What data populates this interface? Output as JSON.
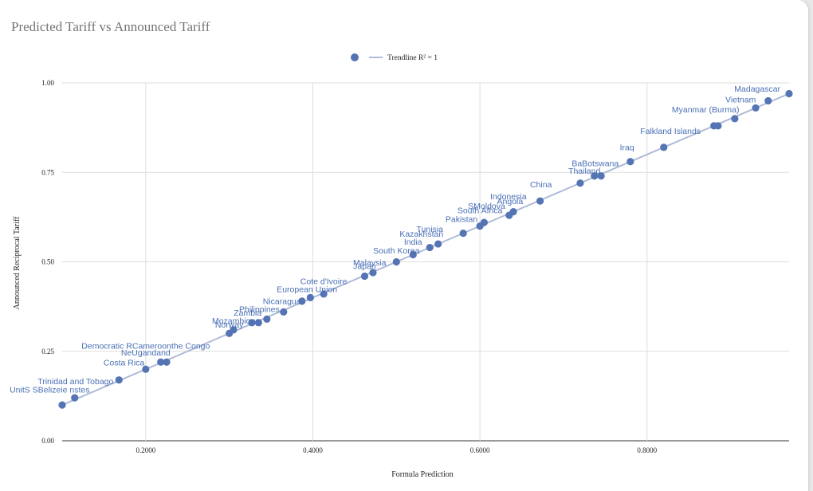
{
  "colors": {
    "point": "#5574b3",
    "trendline": "#aebbd9",
    "label": "#4a6fb5",
    "grid": "#dddddd"
  },
  "chart_data": {
    "type": "scatter",
    "title": "Predicted Tariff vs Announced Tariff",
    "xlabel": "Formula Prediction",
    "ylabel": "Announced Reciprocal Tariff",
    "xlim": [
      0.1,
      0.97
    ],
    "ylim": [
      0,
      1
    ],
    "x_ticks": [
      {
        "v": 0.2,
        "label": "0.2000"
      },
      {
        "v": 0.4,
        "label": "0.4000"
      },
      {
        "v": 0.6,
        "label": "0.6000"
      },
      {
        "v": 0.8,
        "label": "0.8000"
      }
    ],
    "y_ticks": [
      {
        "v": 0,
        "label": "0.00"
      },
      {
        "v": 0.25,
        "label": "0.25"
      },
      {
        "v": 0.5,
        "label": "0.50"
      },
      {
        "v": 0.75,
        "label": "0.75"
      },
      {
        "v": 1,
        "label": "1.00"
      }
    ],
    "grid": true,
    "legend": {
      "position": "top-center",
      "trendline_label": "Trendline R² = 1"
    },
    "trendline": {
      "x": [
        0.1,
        0.97
      ],
      "y": [
        0.1,
        0.97
      ]
    },
    "points": [
      {
        "x": 0.1,
        "y": 0.1
      },
      {
        "x": 0.115,
        "y": 0.12
      },
      {
        "x": 0.168,
        "y": 0.17
      },
      {
        "x": 0.2,
        "y": 0.2
      },
      {
        "x": 0.218,
        "y": 0.22
      },
      {
        "x": 0.225,
        "y": 0.22
      },
      {
        "x": 0.3,
        "y": 0.3
      },
      {
        "x": 0.305,
        "y": 0.31
      },
      {
        "x": 0.327,
        "y": 0.33
      },
      {
        "x": 0.335,
        "y": 0.33
      },
      {
        "x": 0.345,
        "y": 0.34
      },
      {
        "x": 0.365,
        "y": 0.36
      },
      {
        "x": 0.387,
        "y": 0.39
      },
      {
        "x": 0.397,
        "y": 0.4
      },
      {
        "x": 0.413,
        "y": 0.41
      },
      {
        "x": 0.462,
        "y": 0.46
      },
      {
        "x": 0.472,
        "y": 0.47
      },
      {
        "x": 0.5,
        "y": 0.5
      },
      {
        "x": 0.52,
        "y": 0.52
      },
      {
        "x": 0.54,
        "y": 0.54
      },
      {
        "x": 0.55,
        "y": 0.55
      },
      {
        "x": 0.58,
        "y": 0.58
      },
      {
        "x": 0.6,
        "y": 0.6
      },
      {
        "x": 0.605,
        "y": 0.61
      },
      {
        "x": 0.635,
        "y": 0.63
      },
      {
        "x": 0.64,
        "y": 0.64
      },
      {
        "x": 0.672,
        "y": 0.67
      },
      {
        "x": 0.72,
        "y": 0.72
      },
      {
        "x": 0.737,
        "y": 0.74
      },
      {
        "x": 0.745,
        "y": 0.74
      },
      {
        "x": 0.78,
        "y": 0.78
      },
      {
        "x": 0.82,
        "y": 0.82
      },
      {
        "x": 0.88,
        "y": 0.88
      },
      {
        "x": 0.885,
        "y": 0.88
      },
      {
        "x": 0.905,
        "y": 0.9
      },
      {
        "x": 0.93,
        "y": 0.93
      },
      {
        "x": 0.945,
        "y": 0.95
      },
      {
        "x": 0.97,
        "y": 0.97
      }
    ],
    "annotations": [
      {
        "text": "Madagascar",
        "x": 0.932,
        "y": 0.975
      },
      {
        "text": "Vietnam",
        "x": 0.912,
        "y": 0.945
      },
      {
        "text": "Myanmar (Burma)",
        "x": 0.87,
        "y": 0.918
      },
      {
        "text": "Falkland Islands",
        "x": 0.828,
        "y": 0.858
      },
      {
        "text": "Iraq",
        "x": 0.776,
        "y": 0.812
      },
      {
        "text": "BaBotswana",
        "x": 0.738,
        "y": 0.767
      },
      {
        "text": "Thailand",
        "x": 0.725,
        "y": 0.746
      },
      {
        "text": "China",
        "x": 0.673,
        "y": 0.708
      },
      {
        "text": "Indonesia",
        "x": 0.634,
        "y": 0.675
      },
      {
        "text": "Angola",
        "x": 0.636,
        "y": 0.662
      },
      {
        "text": "SMoldova",
        "x": 0.608,
        "y": 0.648
      },
      {
        "text": "South Africa",
        "x": 0.6,
        "y": 0.636
      },
      {
        "text": "Pakistan",
        "x": 0.578,
        "y": 0.611
      },
      {
        "text": "Tunisia",
        "x": 0.54,
        "y": 0.583
      },
      {
        "text": "Kazakhstan",
        "x": 0.53,
        "y": 0.57
      },
      {
        "text": "India",
        "x": 0.52,
        "y": 0.548
      },
      {
        "text": "South Korea",
        "x": 0.5,
        "y": 0.523
      },
      {
        "text": "Malaysia",
        "x": 0.468,
        "y": 0.49
      },
      {
        "text": "Japan",
        "x": 0.462,
        "y": 0.48
      },
      {
        "text": "Cote d'Ivoire",
        "x": 0.413,
        "y": 0.438
      },
      {
        "text": "European Union",
        "x": 0.393,
        "y": 0.415
      },
      {
        "text": "Nicaragua",
        "x": 0.363,
        "y": 0.382
      },
      {
        "text": "Philippines",
        "x": 0.336,
        "y": 0.36
      },
      {
        "text": "Zambia",
        "x": 0.322,
        "y": 0.35
      },
      {
        "text": "Mozambique",
        "x": 0.308,
        "y": 0.327
      },
      {
        "text": "Norway",
        "x": 0.3,
        "y": 0.316
      },
      {
        "text": "Democratic RCameroonthe Congo",
        "x": 0.2,
        "y": 0.257
      },
      {
        "text": "NeUgandand",
        "x": 0.2,
        "y": 0.238
      },
      {
        "text": "Costa Rica",
        "x": 0.174,
        "y": 0.21
      },
      {
        "text": "Trinidad and Tobago",
        "x": 0.116,
        "y": 0.158
      },
      {
        "text": "UnitS SBelizeie nstes",
        "x": 0.085,
        "y": 0.135
      }
    ]
  }
}
